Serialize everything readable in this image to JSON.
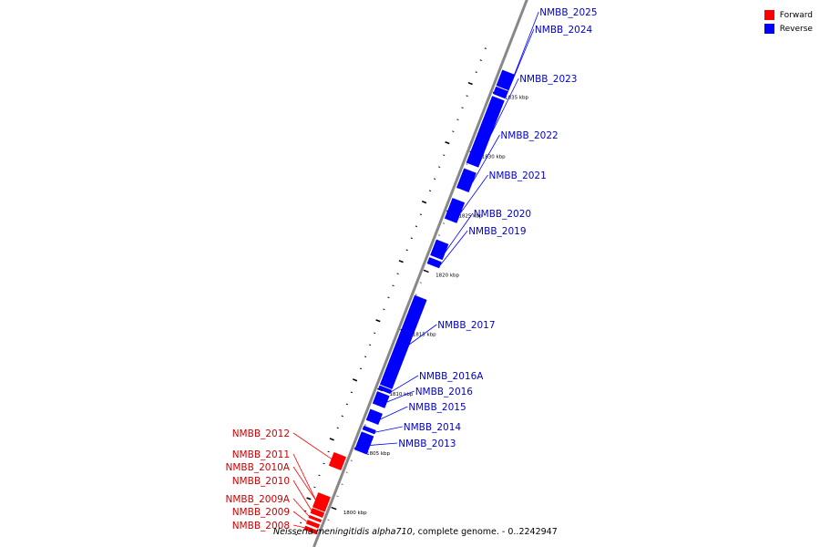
{
  "colors": {
    "forward": "#ff0000",
    "reverse": "#0000ff",
    "label_forward": "#cc0000",
    "label_reverse": "#0000cc",
    "backbone": "#888888"
  },
  "legend": [
    {
      "label": "Forward",
      "color": "#ff0000"
    },
    {
      "label": "Reverse",
      "color": "#0000ff"
    }
  ],
  "caption": {
    "organism": "Neisseria meningitidis alpha710",
    "rest": ", complete genome. - 0..2242947"
  },
  "scale_labels": [
    {
      "kbp": 1800,
      "text": "1800 kbp"
    },
    {
      "kbp": 1805,
      "text": "1805 kbp"
    },
    {
      "kbp": 1810,
      "text": "1810 kbp"
    },
    {
      "kbp": 1815,
      "text": "1815 kbp"
    },
    {
      "kbp": 1820,
      "text": "1820 kbp"
    },
    {
      "kbp": 1825,
      "text": "1825 kbp"
    },
    {
      "kbp": 1830,
      "text": "1830 kbp"
    },
    {
      "kbp": 1835,
      "text": "1835 kbp"
    }
  ],
  "genes": [
    {
      "name": "NMBB_2008",
      "strand": "forward",
      "start_kbp": 1797.6,
      "end_kbp": 1797.9
    },
    {
      "name": "NMBB_2009",
      "strand": "forward",
      "start_kbp": 1798.1,
      "end_kbp": 1798.4
    },
    {
      "name": "NMBB_2009A",
      "strand": "forward",
      "start_kbp": 1798.6,
      "end_kbp": 1798.8
    },
    {
      "name": "NMBB_2010",
      "strand": "forward",
      "start_kbp": 1799.0,
      "end_kbp": 1799.4
    },
    {
      "name": "NMBB_2010A",
      "strand": "forward",
      "start_kbp": 1799.5,
      "end_kbp": 1800.7
    },
    {
      "name": "NMBB_2011",
      "strand": "forward",
      "start_kbp": 1799.5,
      "end_kbp": 1800.7
    },
    {
      "name": "NMBB_2012",
      "strand": "forward",
      "start_kbp": 1803.0,
      "end_kbp": 1804.1
    },
    {
      "name": "NMBB_2013",
      "strand": "reverse",
      "start_kbp": 1804.9,
      "end_kbp": 1806.4
    },
    {
      "name": "NMBB_2014",
      "strand": "reverse",
      "start_kbp": 1806.6,
      "end_kbp": 1806.9
    },
    {
      "name": "NMBB_2015",
      "strand": "reverse",
      "start_kbp": 1807.4,
      "end_kbp": 1808.3
    },
    {
      "name": "NMBB_2016",
      "strand": "reverse",
      "start_kbp": 1808.8,
      "end_kbp": 1809.8
    },
    {
      "name": "NMBB_2016A",
      "strand": "reverse",
      "start_kbp": 1810.0,
      "end_kbp": 1810.3
    },
    {
      "name": "NMBB_2017",
      "strand": "reverse",
      "start_kbp": 1810.4,
      "end_kbp": 1817.9
    },
    {
      "name": "NMBB_2019",
      "strand": "reverse",
      "start_kbp": 1820.6,
      "end_kbp": 1821.1
    },
    {
      "name": "NMBB_2020",
      "strand": "reverse",
      "start_kbp": 1821.3,
      "end_kbp": 1822.6
    },
    {
      "name": "NMBB_2021",
      "strand": "reverse",
      "start_kbp": 1824.4,
      "end_kbp": 1826.1
    },
    {
      "name": "NMBB_2022",
      "strand": "reverse",
      "start_kbp": 1827.0,
      "end_kbp": 1828.6
    },
    {
      "name": "NMBB_2023",
      "strand": "reverse",
      "start_kbp": 1829.1,
      "end_kbp": 1834.7
    },
    {
      "name": "NMBB_2024",
      "strand": "reverse",
      "start_kbp": 1834.9,
      "end_kbp": 1835.5
    },
    {
      "name": "NMBB_2025",
      "strand": "reverse",
      "start_kbp": 1835.6,
      "end_kbp": 1836.9
    }
  ]
}
